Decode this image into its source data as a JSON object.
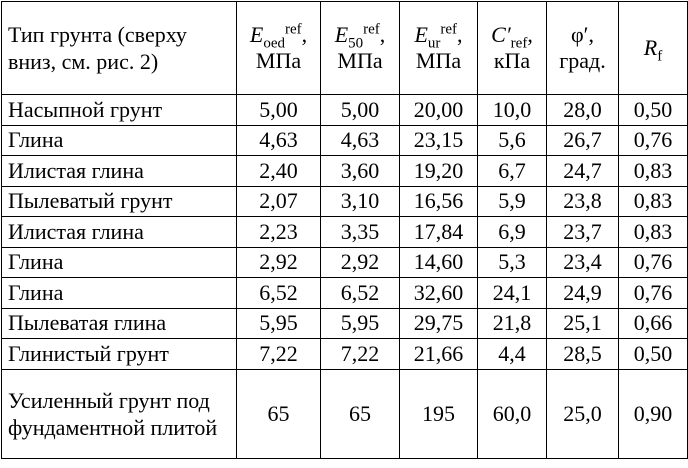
{
  "header": {
    "soil": "Тип грунта (сверху вниз, см. рис. 2)",
    "eoed": {
      "sym": "E",
      "sub": "oed",
      "sup": "ref",
      "unit": "МПа"
    },
    "e50": {
      "sym": "E",
      "sub": "50",
      "sup": "ref",
      "unit": "МПа"
    },
    "eur": {
      "sym": "E",
      "sub": "ur",
      "sup": "ref",
      "unit": "МПа"
    },
    "c": {
      "sym": "C′",
      "sub": "ref",
      "unit": "кПа"
    },
    "phi": {
      "sym": "φ′",
      "unit": "град."
    },
    "rf": {
      "sym": "R",
      "sub": "f"
    }
  },
  "rows": [
    [
      "Насыпной грунт",
      "5,00",
      "5,00",
      "20,00",
      "10,0",
      "28,0",
      "0,50"
    ],
    [
      "Глина",
      "4,63",
      "4,63",
      "23,15",
      "5,6",
      "26,7",
      "0,76"
    ],
    [
      "Илистая глина",
      "2,40",
      "3,60",
      "19,20",
      "6,7",
      "24,7",
      "0,83"
    ],
    [
      "Пылеватый грунт",
      "2,07",
      "3,10",
      "16,56",
      "5,9",
      "23,8",
      "0,83"
    ],
    [
      "Илистая глина",
      "2,23",
      "3,35",
      "17,84",
      "6,9",
      "23,7",
      "0,83"
    ],
    [
      "Глина",
      "2,92",
      "2,92",
      "14,60",
      "5,3",
      "23,4",
      "0,76"
    ],
    [
      "Глина",
      "6,52",
      "6,52",
      "32,60",
      "24,1",
      "24,9",
      "0,76"
    ],
    [
      "Пылеватая глина",
      "5,95",
      "5,95",
      "29,75",
      "21,8",
      "25,1",
      "0,66"
    ],
    [
      "Глинистый грунт",
      "7,22",
      "7,22",
      "21,66",
      "4,4",
      "28,5",
      "0,50"
    ],
    [
      "Усиленный грунт под фундаментной плитой",
      "65",
      "65",
      "195",
      "60,0",
      "25,0",
      "0,90"
    ]
  ]
}
